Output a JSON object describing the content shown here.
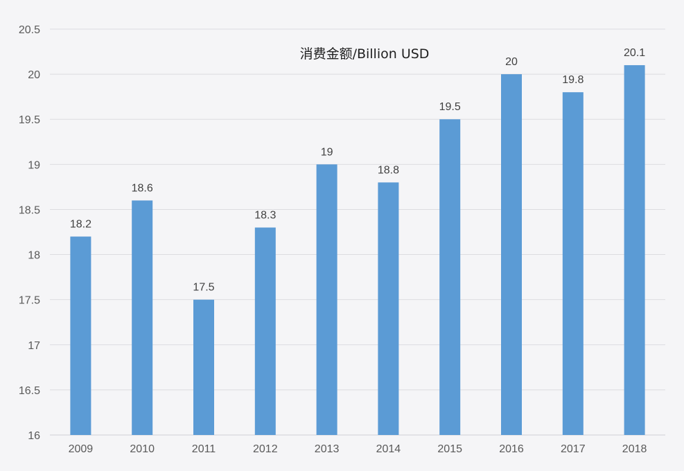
{
  "chart_data": {
    "type": "bar",
    "title": "消费金额/Billion USD",
    "xlabel": "",
    "ylabel": "",
    "categories": [
      "2009",
      "2010",
      "2011",
      "2012",
      "2013",
      "2014",
      "2015",
      "2016",
      "2017",
      "2018"
    ],
    "series": [
      {
        "values": [
          18.2,
          18.6,
          17.5,
          18.3,
          19,
          18.8,
          19.5,
          20,
          19.8,
          20.1
        ]
      }
    ],
    "data_labels": [
      "18.2",
      "18.6",
      "17.5",
      "18.3",
      "19",
      "18.8",
      "19.5",
      "20",
      "19.8",
      "20.1"
    ],
    "ylim": [
      16,
      20.5
    ],
    "yticks": [
      "16",
      "16.5",
      "17",
      "17.5",
      "18",
      "18.5",
      "19",
      "19.5",
      "20",
      "20.5"
    ],
    "grid": true,
    "legend": "none",
    "colors": {
      "bar": "#5b9bd5",
      "grid": "#dcdce0",
      "background": "#f5f5f7"
    }
  }
}
